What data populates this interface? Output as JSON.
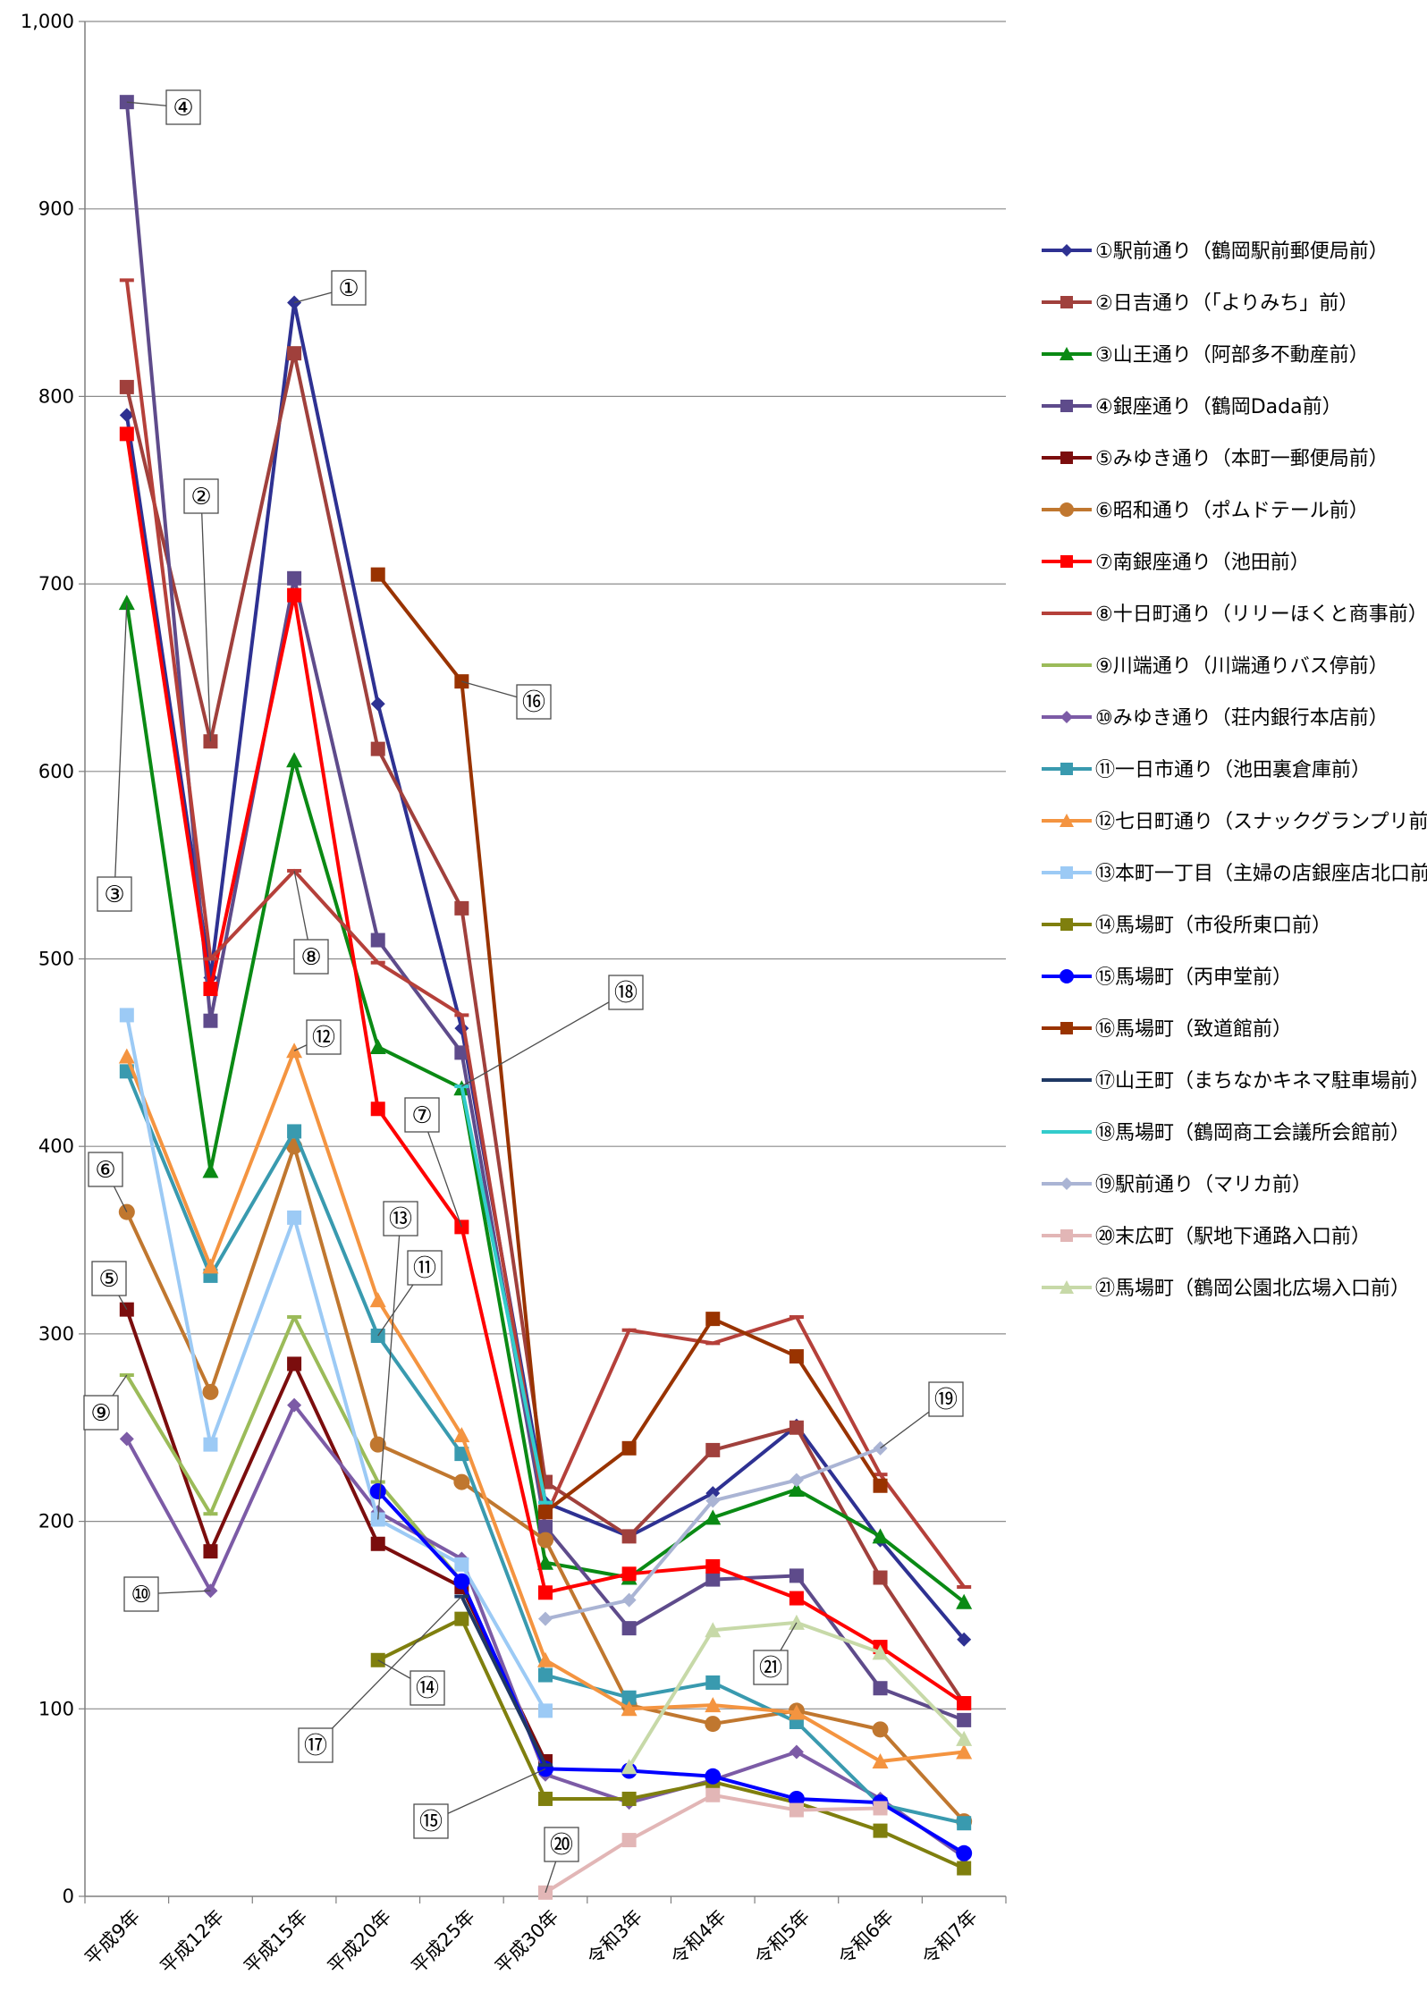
{
  "chart_data": {
    "type": "line",
    "title": "",
    "xlabel": "",
    "ylabel": "",
    "ylim": [
      0,
      1000
    ],
    "yticks": [
      "0",
      "100",
      "200",
      "300",
      "400",
      "500",
      "600",
      "700",
      "800",
      "900",
      "1,000"
    ],
    "categories": [
      "平成9年",
      "平成12年",
      "平成15年",
      "平成20年",
      "平成25年",
      "平成30年",
      "令和3年",
      "令和4年",
      "令和5年",
      "令和6年",
      "令和7年"
    ],
    "grid": "horizontal",
    "legend_position": "right",
    "series": [
      {
        "name": "①駅前通り（鶴岡駅前郵便局前）",
        "label": "①",
        "color": "#2e3192",
        "marker": "diamond",
        "values": [
          790,
          490,
          850,
          636,
          463,
          210,
          192,
          215,
          251,
          190,
          137
        ]
      },
      {
        "name": "②日吉通り（「よりみち」前）",
        "label": "②",
        "color": "#a0403c",
        "marker": "square",
        "values": [
          805,
          616,
          823,
          612,
          527,
          221,
          192,
          238,
          250,
          170,
          103
        ]
      },
      {
        "name": "③山王通り（阿部多不動産前）",
        "label": "③",
        "color": "#0a8a14",
        "marker": "triangle",
        "values": [
          690,
          387,
          606,
          453,
          431,
          178,
          170,
          202,
          217,
          192,
          157
        ]
      },
      {
        "name": "④銀座通り（鶴岡Dada前）",
        "label": "④",
        "color": "#5e4b8b",
        "marker": "square",
        "values": [
          957,
          467,
          703,
          510,
          450,
          197,
          143,
          169,
          171,
          111,
          94
        ]
      },
      {
        "name": "⑤みゆき通り（本町一郵便局前）",
        "label": "⑤",
        "color": "#7b0d0d",
        "marker": "square",
        "values": [
          313,
          184,
          284,
          188,
          165,
          72,
          null,
          null,
          null,
          null,
          null
        ]
      },
      {
        "name": "⑥昭和通り（ポムドテール前）",
        "label": "⑥",
        "color": "#c0772f",
        "marker": "circle",
        "values": [
          365,
          269,
          400,
          241,
          221,
          190,
          102,
          92,
          99,
          89,
          40
        ]
      },
      {
        "name": "⑦南銀座通り（池田前）",
        "label": "⑦",
        "color": "#ff0000",
        "marker": "square",
        "values": [
          780,
          484,
          694,
          420,
          357,
          162,
          172,
          176,
          159,
          133,
          103
        ]
      },
      {
        "name": "⑧十日町通り（リリーほくと商事前）",
        "label": "⑧",
        "color": "#b5403a",
        "marker": "dash",
        "values": [
          862,
          500,
          547,
          498,
          470,
          202,
          302,
          295,
          309,
          225,
          165
        ]
      },
      {
        "name": "⑨川端通り（川端通りバス停前）",
        "label": "⑨",
        "color": "#9bbb59",
        "marker": "dash",
        "values": [
          278,
          204,
          309,
          221,
          168,
          null,
          null,
          null,
          null,
          null,
          null
        ]
      },
      {
        "name": "⑩みゆき通り（荘内銀行本店前）",
        "label": "⑩",
        "color": "#7c5ba6",
        "marker": "diamond",
        "values": [
          244,
          163,
          262,
          205,
          180,
          65,
          50,
          62,
          77,
          52,
          21
        ]
      },
      {
        "name": "⑪一日市通り（池田裏倉庫前）",
        "label": "⑪",
        "color": "#399aaf",
        "marker": "square",
        "values": [
          440,
          331,
          408,
          299,
          236,
          118,
          106,
          114,
          93,
          49,
          39
        ]
      },
      {
        "name": "⑫七日町通り（スナックグランプリ前）",
        "label": "⑫",
        "color": "#f49440",
        "marker": "triangle",
        "values": [
          448,
          336,
          451,
          318,
          246,
          126,
          100,
          102,
          98,
          72,
          77
        ]
      },
      {
        "name": "⑬本町一丁目（主婦の店銀座店北口前）",
        "label": "⑬",
        "color": "#9ccaf5",
        "marker": "square",
        "values": [
          470,
          241,
          362,
          201,
          177,
          99,
          null,
          null,
          null,
          null,
          null
        ]
      },
      {
        "name": "⑭馬場町（市役所東口前）",
        "label": "⑭",
        "color": "#7f7f0e",
        "marker": "square",
        "values": [
          null,
          null,
          null,
          126,
          148,
          52,
          52,
          61,
          50,
          35,
          15
        ]
      },
      {
        "name": "⑮馬場町（丙申堂前）",
        "label": "⑮",
        "color": "#0000ff",
        "marker": "circle",
        "values": [
          null,
          null,
          null,
          216,
          168,
          68,
          67,
          64,
          52,
          50,
          23
        ]
      },
      {
        "name": "⑯馬場町（致道館前）",
        "label": "⑯",
        "color": "#993300",
        "marker": "square",
        "values": [
          null,
          null,
          null,
          705,
          648,
          205,
          239,
          308,
          288,
          219,
          null
        ]
      },
      {
        "name": "⑰山王町（まちなかキネマ駐車場前）",
        "label": "⑰",
        "color": "#1f3864",
        "marker": "dash",
        "values": [
          null,
          null,
          null,
          null,
          160,
          70,
          null,
          null,
          null,
          null,
          null
        ]
      },
      {
        "name": "⑱馬場町（鶴岡商工会議所会館前）",
        "label": "⑱",
        "color": "#33cccc",
        "marker": "dash",
        "values": [
          null,
          null,
          null,
          null,
          432,
          210,
          null,
          null,
          null,
          null,
          null
        ]
      },
      {
        "name": "⑲駅前通り（マリカ前）",
        "label": "⑲",
        "color": "#aab4d4",
        "marker": "diamond",
        "values": [
          null,
          null,
          null,
          null,
          null,
          148,
          158,
          211,
          222,
          239,
          null
        ]
      },
      {
        "name": "⑳末広町（駅地下通路入口前）",
        "label": "⑳",
        "color": "#e2b6b6",
        "marker": "square",
        "values": [
          null,
          null,
          null,
          null,
          null,
          2,
          30,
          54,
          46,
          47,
          null
        ]
      },
      {
        "name": "㉑馬場町（鶴岡公園北広場入口前）",
        "label": "㉑",
        "color": "#c7d9a8",
        "marker": "triangle",
        "values": [
          null,
          null,
          null,
          null,
          null,
          null,
          69,
          142,
          146,
          130,
          84
        ]
      }
    ]
  }
}
